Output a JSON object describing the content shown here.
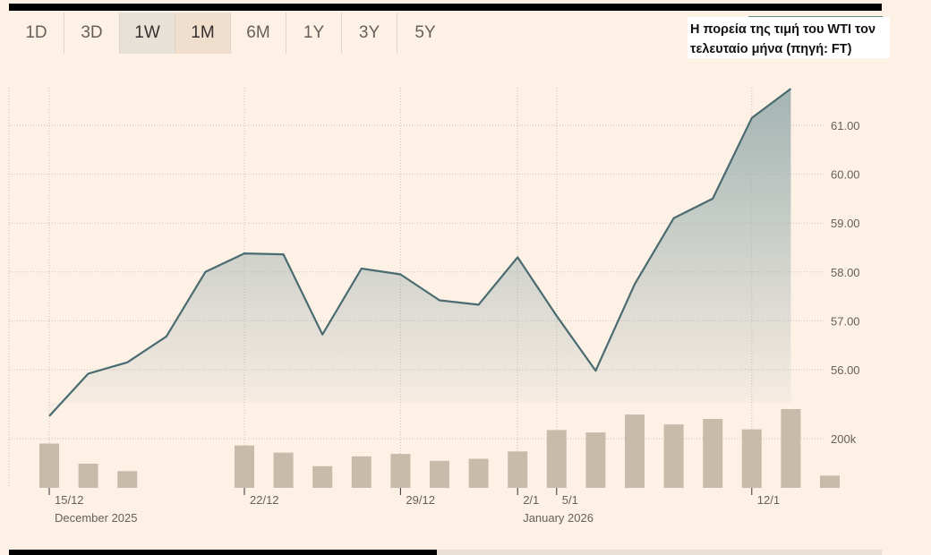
{
  "tabs": [
    {
      "label": "1D",
      "state": "normal"
    },
    {
      "label": "3D",
      "state": "normal"
    },
    {
      "label": "1W",
      "state": "selected-grey"
    },
    {
      "label": "1M",
      "state": "selected-peach"
    },
    {
      "label": "6M",
      "state": "normal"
    },
    {
      "label": "1Y",
      "state": "normal"
    },
    {
      "label": "3Y",
      "state": "normal"
    },
    {
      "label": "5Y",
      "state": "normal"
    }
  ],
  "caption": {
    "line1": "Η πορεία της τιμή του WTI τον",
    "line2": "τελευταίο μήνα (πηγή: FT)"
  },
  "colors": {
    "line": "#4a6b70",
    "bar": "#c9bbaa",
    "background": "#fdf1e6"
  },
  "chart_data": {
    "type": "line",
    "title": "",
    "y_ticks": [
      "56.00",
      "57.00",
      "58.00",
      "59.00",
      "60.00",
      "61.00"
    ],
    "ylim": [
      55.0,
      61.8
    ],
    "price": {
      "x": [
        "2025-12-15",
        "2025-12-16",
        "2025-12-17",
        "2025-12-18",
        "2025-12-19",
        "2025-12-22",
        "2025-12-23",
        "2025-12-24",
        "2025-12-26",
        "2025-12-29",
        "2025-12-30",
        "2025-12-31",
        "2026-01-02",
        "2026-01-05",
        "2026-01-06",
        "2026-01-07",
        "2026-01-08",
        "2026-01-09",
        "2026-01-12",
        "2026-01-13",
        "2026-01-14"
      ],
      "values": [
        55.05,
        55.92,
        56.15,
        56.68,
        58.0,
        58.38,
        58.36,
        56.72,
        58.07,
        57.95,
        57.42,
        57.33,
        58.3,
        57.1,
        55.98,
        57.75,
        59.1,
        59.5,
        61.15,
        61.75,
        null
      ]
    },
    "volume": {
      "tick_label": "200k",
      "tick_value": 200,
      "ylim": [
        0,
        320
      ],
      "x": [
        "2025-12-15",
        "2025-12-16",
        "2025-12-17",
        "2025-12-22",
        "2025-12-23",
        "2025-12-24",
        "2025-12-26",
        "2025-12-29",
        "2025-12-30",
        "2025-12-31",
        "2026-01-02",
        "2026-01-05",
        "2026-01-06",
        "2026-01-07",
        "2026-01-08",
        "2026-01-09",
        "2026-01-12",
        "2026-01-13",
        "2026-01-14"
      ],
      "values": [
        180,
        98,
        68,
        172,
        143,
        88,
        128,
        138,
        110,
        118,
        148,
        235,
        225,
        298,
        258,
        280,
        238,
        320,
        50
      ]
    },
    "x_ticks": [
      {
        "label": "15/12",
        "date": "2025-12-15"
      },
      {
        "label": "22/12",
        "date": "2025-12-22"
      },
      {
        "label": "29/12",
        "date": "2025-12-29"
      },
      {
        "label": "2/1",
        "date": "2026-01-02"
      },
      {
        "label": "5/1",
        "date": "2026-01-05"
      },
      {
        "label": "12/1",
        "date": "2026-01-12"
      }
    ],
    "x_period_labels": [
      {
        "label": "December 2025",
        "date": "2025-12-15"
      },
      {
        "label": "January 2026",
        "date": "2026-01-02"
      }
    ],
    "grid": true
  }
}
